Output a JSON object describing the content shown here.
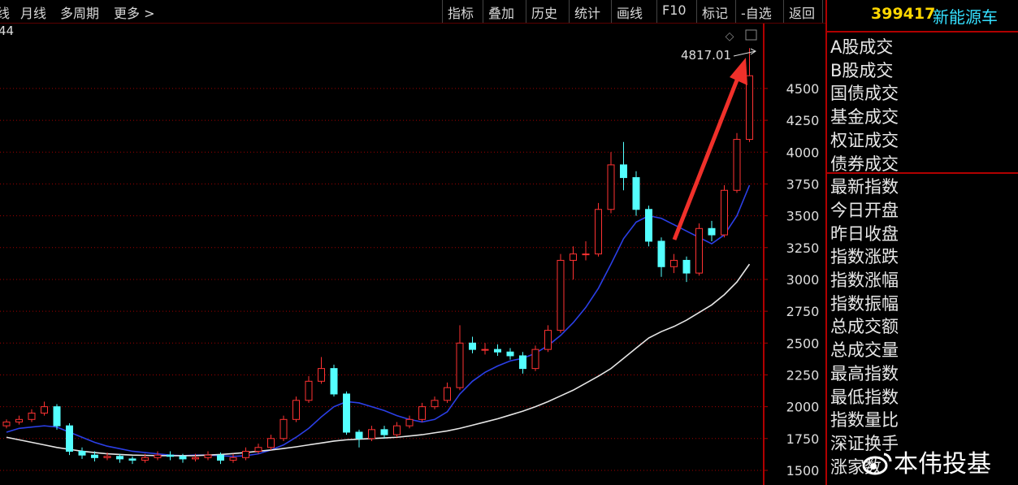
{
  "toolbar": {
    "left_tabs": [
      "线",
      "月线",
      "多周期",
      "更多 >"
    ],
    "right_buttons": [
      "指标",
      "叠加",
      "历史",
      "统计",
      "画线",
      "F10",
      "标记",
      "-自选",
      "返回"
    ]
  },
  "panel": {
    "code": "399417",
    "name": "新能源车",
    "fields": [
      "A股成交",
      "B股成交",
      "国债成交",
      "基金成交",
      "权证成交",
      "债券成交",
      "最新指数",
      "今日开盘",
      "昨日收盘",
      "指数涨跌",
      "指数涨幅",
      "指数振幅",
      "总成交额",
      "总成交量",
      "最高指数",
      "最低指数",
      "指数量比",
      "深证换手",
      "涨家数"
    ]
  },
  "watermark": "本伟投基",
  "chart_data": {
    "type": "candlestick",
    "corner_label": "44",
    "grid": true,
    "ylim": [
      1385,
      5010
    ],
    "yticks": [
      1500,
      1750,
      2000,
      2250,
      2500,
      2750,
      3000,
      3250,
      3500,
      3750,
      4000,
      4250,
      4500
    ],
    "up_color": "#ff3232",
    "down_color": "#54ffff",
    "annotations": [
      {
        "text": "4817.01"
      }
    ],
    "open": [
      1850,
      1880,
      1900,
      1950,
      2000,
      1850,
      1650,
      1620,
      1600,
      1610,
      1590,
      1580,
      1600,
      1620,
      1610,
      1590,
      1600,
      1620,
      1580,
      1600,
      1650,
      1680,
      1750,
      1900,
      2050,
      2200,
      2300,
      2100,
      1800,
      1750,
      1820,
      1780,
      1850,
      1900,
      2000,
      2050,
      2150,
      2500,
      2450,
      2450,
      2430,
      2400,
      2300,
      2450,
      2600,
      3150,
      3200,
      3200,
      3550,
      3900,
      3800,
      3550,
      3300,
      3100,
      3150,
      3050,
      3400,
      3350,
      3700,
      4100
    ],
    "close": [
      1880,
      1900,
      1950,
      2000,
      1850,
      1650,
      1620,
      1600,
      1610,
      1590,
      1580,
      1600,
      1620,
      1610,
      1590,
      1600,
      1620,
      1580,
      1600,
      1650,
      1680,
      1750,
      1900,
      2050,
      2200,
      2300,
      2100,
      1800,
      1750,
      1820,
      1780,
      1850,
      1900,
      2000,
      2050,
      2150,
      2500,
      2450,
      2450,
      2430,
      2400,
      2300,
      2450,
      2600,
      3150,
      3200,
      3200,
      3550,
      3900,
      3800,
      3550,
      3300,
      3100,
      3150,
      3050,
      3400,
      3350,
      3700,
      4100,
      4600
    ],
    "high": [
      1900,
      1930,
      1980,
      2040,
      2020,
      1870,
      1680,
      1650,
      1640,
      1630,
      1610,
      1630,
      1650,
      1650,
      1630,
      1630,
      1650,
      1640,
      1630,
      1680,
      1710,
      1780,
      1930,
      2080,
      2240,
      2390,
      2330,
      2120,
      1820,
      1850,
      1850,
      1880,
      1930,
      2030,
      2080,
      2190,
      2640,
      2550,
      2500,
      2490,
      2460,
      2430,
      2480,
      2640,
      3200,
      3260,
      3300,
      3600,
      4000,
      4080,
      3850,
      3580,
      3330,
      3200,
      3180,
      3440,
      3460,
      3740,
      4150,
      4817.01
    ],
    "low": [
      1830,
      1860,
      1880,
      1930,
      1820,
      1620,
      1590,
      1570,
      1580,
      1560,
      1550,
      1560,
      1580,
      1580,
      1560,
      1570,
      1580,
      1550,
      1560,
      1580,
      1630,
      1660,
      1730,
      1880,
      2030,
      2180,
      2080,
      1780,
      1680,
      1730,
      1750,
      1760,
      1830,
      1880,
      1980,
      2030,
      2130,
      2420,
      2410,
      2400,
      2370,
      2260,
      2280,
      2430,
      2580,
      3000,
      3150,
      3180,
      3520,
      3700,
      3500,
      3260,
      3020,
      3050,
      2980,
      3030,
      3300,
      3330,
      3680,
      4080
    ],
    "moving_averages": [
      {
        "color": "#2b3fe6",
        "values": [
          1800,
          1830,
          1840,
          1850,
          1840,
          1800,
          1760,
          1720,
          1690,
          1670,
          1650,
          1640,
          1630,
          1620,
          1615,
          1620,
          1620,
          1615,
          1610,
          1615,
          1630,
          1660,
          1700,
          1760,
          1830,
          1920,
          2000,
          2040,
          2030,
          2000,
          1970,
          1930,
          1900,
          1880,
          1900,
          1960,
          2100,
          2200,
          2270,
          2320,
          2360,
          2380,
          2420,
          2480,
          2560,
          2660,
          2780,
          2930,
          3120,
          3320,
          3450,
          3500,
          3480,
          3430,
          3380,
          3330,
          3280,
          3350,
          3500,
          3740
        ]
      },
      {
        "color": "#e6e6e6",
        "values": [
          1760,
          1740,
          1720,
          1700,
          1680,
          1665,
          1650,
          1640,
          1630,
          1625,
          1620,
          1618,
          1616,
          1615,
          1615,
          1616,
          1620,
          1625,
          1632,
          1640,
          1650,
          1660,
          1672,
          1685,
          1700,
          1715,
          1730,
          1740,
          1745,
          1750,
          1755,
          1760,
          1770,
          1780,
          1795,
          1810,
          1830,
          1855,
          1880,
          1905,
          1935,
          1965,
          2000,
          2040,
          2085,
          2130,
          2185,
          2240,
          2300,
          2380,
          2460,
          2540,
          2590,
          2630,
          2680,
          2740,
          2800,
          2880,
          2980,
          3120
        ]
      }
    ]
  }
}
